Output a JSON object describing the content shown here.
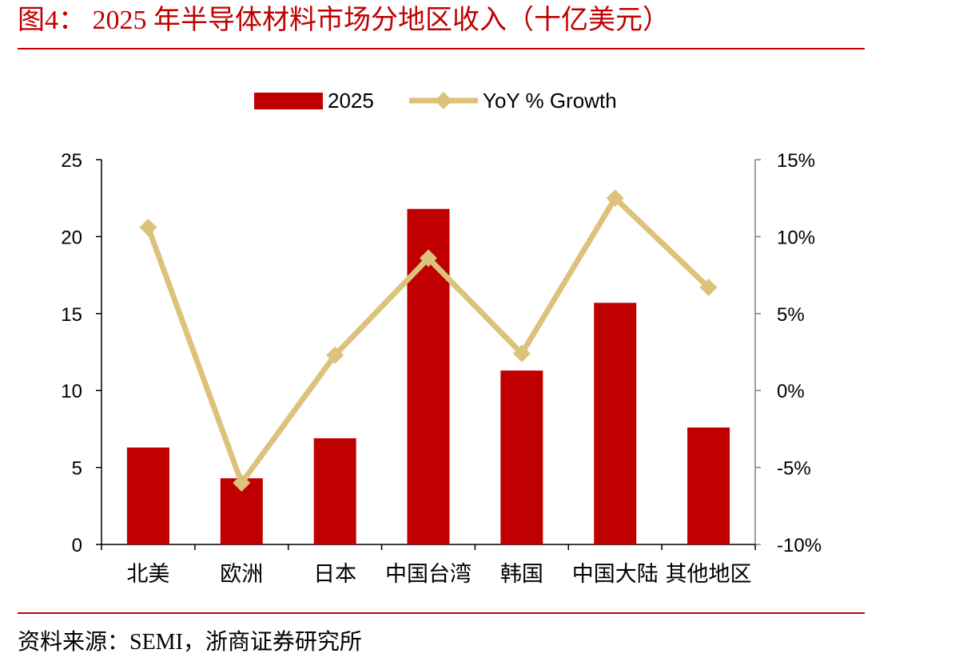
{
  "header": {
    "title": "图4： 2025 年半导体材料市场分地区收入（十亿美元）"
  },
  "footer": {
    "source": "资料来源：SEMI，浙商证券研究所"
  },
  "colors": {
    "accent": "#c00000",
    "bar": "#c00000",
    "line": "#dcc27a",
    "axis": "#808080"
  },
  "chart_data": {
    "type": "bar",
    "categories": [
      "北美",
      "欧洲",
      "日本",
      "中国台湾",
      "韩国",
      "中国大陆",
      "其他地区"
    ],
    "series": [
      {
        "name": "2025",
        "type": "bar",
        "axis": "left",
        "values": [
          6.3,
          4.3,
          6.9,
          21.8,
          11.3,
          15.7,
          7.6
        ]
      },
      {
        "name": "YoY % Growth",
        "type": "line",
        "axis": "right",
        "marker": "diamond",
        "values": [
          10.6,
          -6.0,
          2.3,
          8.6,
          2.4,
          12.5,
          6.7
        ]
      }
    ],
    "y_left": {
      "lim": [
        0,
        25
      ],
      "ticks": [
        0,
        5,
        10,
        15,
        20,
        25
      ],
      "tick_labels": [
        "0",
        "5",
        "10",
        "15",
        "20",
        "25"
      ]
    },
    "y_right": {
      "lim": [
        -10,
        15
      ],
      "ticks": [
        -10,
        -5,
        0,
        5,
        10,
        15
      ],
      "tick_labels": [
        "-10%",
        "-5%",
        "0%",
        "5%",
        "10%",
        "15%"
      ]
    },
    "grid": false,
    "legend_position": "top-center"
  }
}
